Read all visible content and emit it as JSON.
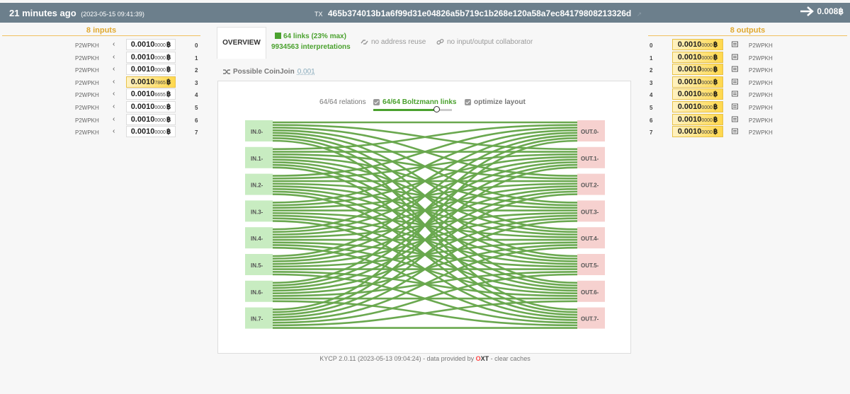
{
  "header": {
    "time_ago": "21 minutes ago",
    "timestamp": "(2023-05-15 09:41:39)",
    "tx_label": "TX",
    "txid": "465b374013b1a6f99d31e04826a5b719c1b268e120a58a7ec84179808213326d",
    "ext_icon": "external-link-icon",
    "total": "0.008฿"
  },
  "inputs": {
    "title": "8 inputs",
    "items": [
      {
        "type": "P2WPKH",
        "big": "0.0010",
        "small": "0000",
        "index": "0",
        "highlight": false
      },
      {
        "type": "P2WPKH",
        "big": "0.0010",
        "small": "0000",
        "index": "1",
        "highlight": false
      },
      {
        "type": "P2WPKH",
        "big": "0.0010",
        "small": "0000",
        "index": "2",
        "highlight": false
      },
      {
        "type": "P2WPKH",
        "big": "0.0010",
        "small": "7865",
        "index": "3",
        "highlight": true
      },
      {
        "type": "P2WPKH",
        "big": "0.0010",
        "small": "6655",
        "index": "4",
        "highlight": false
      },
      {
        "type": "P2WPKH",
        "big": "0.0010",
        "small": "0000",
        "index": "5",
        "highlight": false
      },
      {
        "type": "P2WPKH",
        "big": "0.0010",
        "small": "0000",
        "index": "6",
        "highlight": false
      },
      {
        "type": "P2WPKH",
        "big": "0.0010",
        "small": "0000",
        "index": "7",
        "highlight": false
      }
    ]
  },
  "outputs": {
    "title": "8 outputs",
    "items": [
      {
        "type": "P2WPKH",
        "big": "0.0010",
        "small": "0000",
        "index": "0"
      },
      {
        "type": "P2WPKH",
        "big": "0.0010",
        "small": "0000",
        "index": "1"
      },
      {
        "type": "P2WPKH",
        "big": "0.0010",
        "small": "0000",
        "index": "2"
      },
      {
        "type": "P2WPKH",
        "big": "0.0010",
        "small": "0000",
        "index": "3"
      },
      {
        "type": "P2WPKH",
        "big": "0.0010",
        "small": "0000",
        "index": "4"
      },
      {
        "type": "P2WPKH",
        "big": "0.0010",
        "small": "0000",
        "index": "5"
      },
      {
        "type": "P2WPKH",
        "big": "0.0010",
        "small": "0000",
        "index": "6"
      },
      {
        "type": "P2WPKH",
        "big": "0.0010",
        "small": "0000",
        "index": "7"
      }
    ]
  },
  "btc_symbol": "฿",
  "overview": {
    "tab_label": "OVERVIEW",
    "links": "64 links (23% max)",
    "interpretations": "9934563 interpretations",
    "no_address_reuse": "no address reuse",
    "no_collaborator": "no input/output collaborator",
    "coinjoin_label": "Possible CoinJoin",
    "coinjoin_value": "0.001"
  },
  "graph": {
    "relations": "64/64 relations",
    "boltzmann": "64/64 Boltzmann links",
    "optimize": "optimize layout",
    "slider_value": 0.8,
    "in_labels": [
      "IN.0-",
      "IN.1-",
      "IN.2-",
      "IN.3-",
      "IN.4-",
      "IN.5-",
      "IN.6-",
      "IN.7-"
    ],
    "out_labels": [
      "OUT.0-",
      "OUT.1-",
      "OUT.2-",
      "OUT.3-",
      "OUT.4-",
      "OUT.5-",
      "OUT.6-",
      "OUT.7-"
    ],
    "link_color": "#6aa84f",
    "in_color": "#c8ecc1",
    "out_color": "#f6d1cf"
  },
  "footer": {
    "version": "KYCP 2.0.11 (2023-05-13 09:04:24) - data provided by",
    "oxt_o": "O",
    "oxt_xt": "XT",
    "rest": "- clear caches"
  }
}
